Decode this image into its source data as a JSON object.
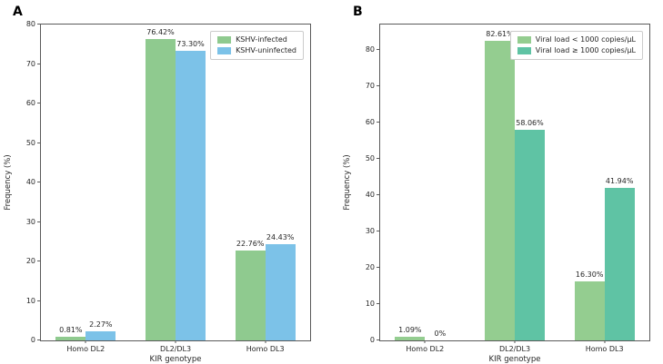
{
  "figure": {
    "background": "#ffffff"
  },
  "chart_data": [
    {
      "type": "bar",
      "panel_label": "A",
      "title": "",
      "categories": [
        "Homo DL2",
        "DL2/DL3",
        "Homo DL3"
      ],
      "series": [
        {
          "name": "KSHV-infected",
          "color": "#8fca8f",
          "values": [
            0.81,
            76.42,
            22.76
          ],
          "value_labels": [
            "0.81%",
            "76.42%",
            "22.76%"
          ]
        },
        {
          "name": "KSHV-uninfected",
          "color": "#7cc2e8",
          "values": [
            2.27,
            73.3,
            24.43
          ],
          "value_labels": [
            "2.27%",
            "73.30%",
            "24.43%"
          ]
        }
      ],
      "xlabel": "KIR genotype",
      "ylabel": "Frequency (%)",
      "ylim": [
        0,
        80
      ],
      "yticks": [
        0,
        10,
        20,
        30,
        40,
        50,
        60,
        70,
        80
      ],
      "legend_position": "upper right",
      "grid": false
    },
    {
      "type": "bar",
      "panel_label": "B",
      "title": "",
      "categories": [
        "Homo DL2",
        "DL2/DL3",
        "Homo DL3"
      ],
      "series": [
        {
          "name": "Viral load < 1000 copies/μL",
          "color": "#94cd90",
          "values": [
            1.09,
            82.61,
            16.3
          ],
          "value_labels": [
            "1.09%",
            "82.61%",
            "16.30%"
          ]
        },
        {
          "name": "Viral load ≥ 1000 copies/μL",
          "color": "#5fc3a4",
          "values": [
            0,
            58.06,
            41.94
          ],
          "value_labels": [
            "0%",
            "58.06%",
            "41.94%"
          ]
        }
      ],
      "xlabel": "KIR genotype",
      "ylabel": "Frequency (%)",
      "ylim": [
        0,
        87
      ],
      "yticks": [
        0,
        10,
        20,
        30,
        40,
        50,
        60,
        70,
        80
      ],
      "legend_position": "upper right",
      "grid": false
    }
  ]
}
